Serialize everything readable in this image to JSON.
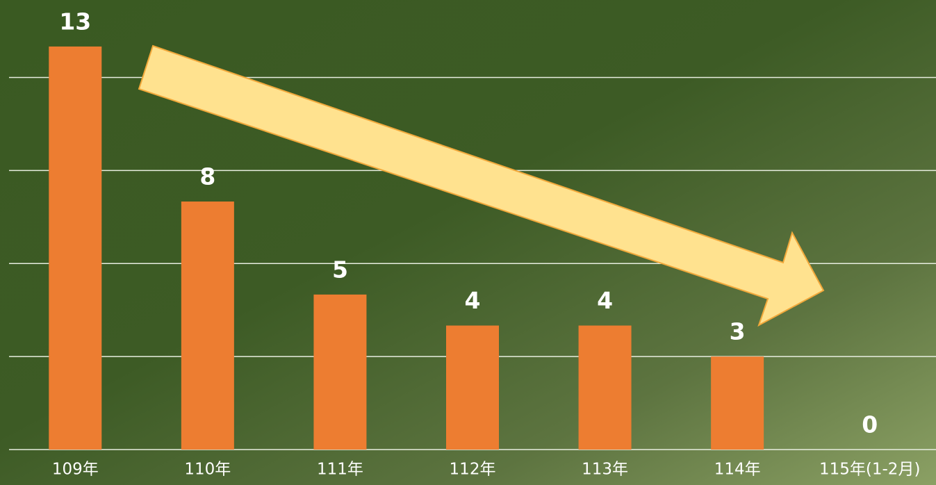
{
  "chart_data": {
    "type": "bar",
    "categories": [
      "109年",
      "110年",
      "111年",
      "112年",
      "113年",
      "114年",
      "115年(1-2月)"
    ],
    "values": [
      13,
      8,
      5,
      4,
      4,
      3,
      0
    ],
    "color": "#ed7d31",
    "ylim": [
      0,
      14.5
    ],
    "yticks": [
      0,
      3,
      6,
      9,
      12
    ],
    "grid": true
  }
}
